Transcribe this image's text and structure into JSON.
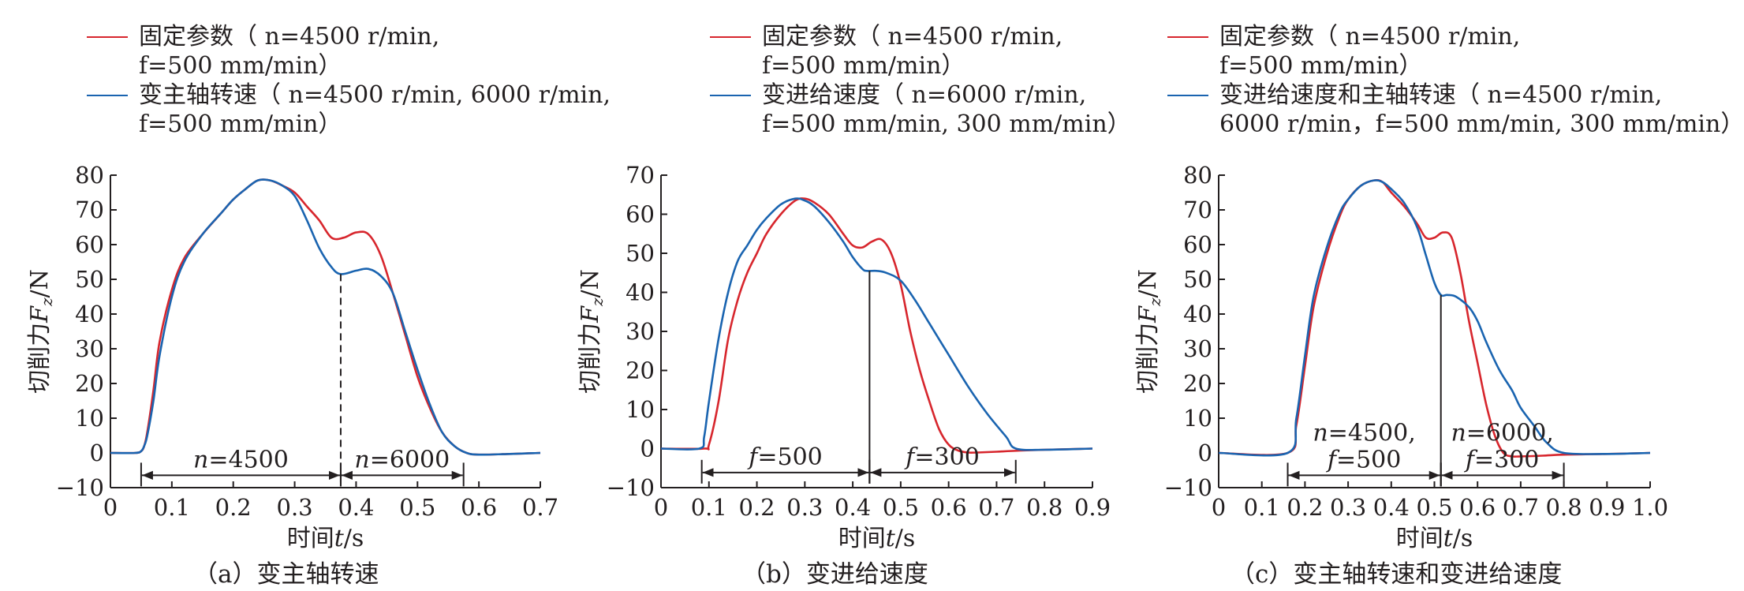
{
  "colors": {
    "fixed": "#d7262d",
    "variable": "#1a64b0",
    "axis": "#231f20"
  },
  "chart_data": [
    {
      "type": "line",
      "caption": "（a）变主轴转速",
      "xlabel": "时间t/s",
      "ylabel": "切削力F_z/N",
      "xlim": [
        0,
        0.7
      ],
      "ylim": [
        -10,
        80
      ],
      "xticks": [
        "0",
        "0.1",
        "0.2",
        "0.3",
        "0.4",
        "0.5",
        "0.6",
        "0.7"
      ],
      "yticks": [
        "−10",
        "0",
        "10",
        "20",
        "30",
        "40",
        "50",
        "60",
        "70",
        "80"
      ],
      "legend": [
        {
          "line1": "固定参数（ n=4500 r/min,",
          "line2": "f=500 mm/min）"
        },
        {
          "line1": "变主轴转速（ n=4500 r/min, 6000 r/min,",
          "line2": "f=500 mm/min）"
        }
      ],
      "series": [
        {
          "name": "固定参数",
          "color_key": "fixed",
          "x": [
            0,
            0.04,
            0.05,
            0.055,
            0.06,
            0.07,
            0.08,
            0.1,
            0.12,
            0.15,
            0.18,
            0.2,
            0.22,
            0.24,
            0.26,
            0.28,
            0.3,
            0.32,
            0.34,
            0.36,
            0.38,
            0.4,
            0.42,
            0.44,
            0.46,
            0.48,
            0.5,
            0.52,
            0.54,
            0.56,
            0.58,
            0.6,
            0.65,
            0.7
          ],
          "y": [
            0,
            0,
            0.5,
            2,
            6,
            18,
            32,
            47,
            56,
            63,
            69,
            73,
            76,
            78.5,
            78.5,
            77,
            75,
            71,
            67,
            62,
            62,
            63.5,
            63,
            57,
            46,
            34,
            22,
            13,
            6,
            2,
            0,
            -0.5,
            -0.3,
            0
          ]
        },
        {
          "name": "变主轴转速",
          "color_key": "variable",
          "x": [
            0,
            0.04,
            0.05,
            0.055,
            0.06,
            0.07,
            0.08,
            0.1,
            0.12,
            0.15,
            0.18,
            0.2,
            0.22,
            0.24,
            0.26,
            0.28,
            0.3,
            0.32,
            0.34,
            0.36,
            0.375,
            0.4,
            0.42,
            0.44,
            0.46,
            0.48,
            0.5,
            0.52,
            0.54,
            0.56,
            0.58,
            0.6,
            0.65,
            0.7
          ],
          "y": [
            0,
            0,
            0.5,
            2,
            5,
            15,
            28,
            45,
            55,
            63,
            69,
            73,
            76,
            78.5,
            78.5,
            77,
            74,
            67,
            59,
            53.5,
            51.5,
            52.5,
            53,
            51,
            46,
            35,
            24,
            14,
            6,
            2,
            0,
            -0.5,
            -0.3,
            0
          ]
        }
      ],
      "vertical_marker": {
        "x": 0.375,
        "style": "dashed"
      },
      "annotations": [
        {
          "text": "n=4500",
          "x_from": 0.05,
          "x_to": 0.375,
          "y": -3.5
        },
        {
          "text": "n=6000",
          "x_from": 0.375,
          "x_to": 0.575,
          "y": -3.5
        }
      ]
    },
    {
      "type": "line",
      "caption": "（b）变进给速度",
      "xlabel": "时间t/s",
      "ylabel": "切削力F_z/N",
      "xlim": [
        0,
        0.9
      ],
      "ylim": [
        -10,
        70
      ],
      "xticks": [
        "0",
        "0.1",
        "0.2",
        "0.3",
        "0.4",
        "0.5",
        "0.6",
        "0.7",
        "0.8",
        "0.9"
      ],
      "yticks": [
        "−10",
        "0",
        "10",
        "20",
        "30",
        "40",
        "50",
        "60",
        "70"
      ],
      "legend": [
        {
          "line1": "固定参数（ n=4500 r/min,",
          "line2": "f=500 mm/min）"
        },
        {
          "line1": "变进给速度（ n=6000 r/min,",
          "line2": "f=500 mm/min, 300 mm/min）"
        }
      ],
      "series": [
        {
          "name": "固定参数",
          "color_key": "fixed",
          "x": [
            0,
            0.09,
            0.1,
            0.12,
            0.14,
            0.16,
            0.18,
            0.2,
            0.22,
            0.25,
            0.28,
            0.3,
            0.32,
            0.35,
            0.38,
            0.4,
            0.42,
            0.44,
            0.46,
            0.48,
            0.5,
            0.52,
            0.54,
            0.56,
            0.58,
            0.6,
            0.62,
            0.64,
            0.66,
            0.7,
            0.75,
            0.8,
            0.9
          ],
          "y": [
            0,
            0,
            1,
            12,
            28,
            38,
            45,
            50,
            55,
            60,
            63.5,
            64,
            63,
            60,
            55,
            52,
            51.5,
            53,
            53.5,
            50,
            42,
            30,
            20,
            12,
            5,
            1,
            -0.5,
            -1,
            -1,
            -0.8,
            -0.5,
            -0.3,
            0
          ]
        },
        {
          "name": "变进给速度",
          "color_key": "variable",
          "x": [
            0,
            0.08,
            0.09,
            0.1,
            0.12,
            0.14,
            0.16,
            0.18,
            0.2,
            0.22,
            0.25,
            0.28,
            0.3,
            0.32,
            0.35,
            0.38,
            0.4,
            0.42,
            0.43,
            0.45,
            0.47,
            0.5,
            0.53,
            0.56,
            0.6,
            0.64,
            0.68,
            0.72,
            0.74,
            0.8,
            0.9
          ],
          "y": [
            0,
            0,
            3,
            12,
            28,
            40,
            48,
            52,
            56,
            59,
            62.5,
            64,
            63.5,
            62,
            58,
            53,
            49,
            46,
            45.5,
            45.5,
            45,
            43,
            38,
            32,
            24,
            16,
            9,
            3,
            0,
            -0.3,
            0
          ]
        }
      ],
      "vertical_marker": {
        "x": 0.435,
        "style": "solid"
      },
      "annotations": [
        {
          "text": "f=500",
          "x_from": 0.085,
          "x_to": 0.435,
          "y": -3.5
        },
        {
          "text": "f=300",
          "x_from": 0.435,
          "x_to": 0.74,
          "y": -3.5
        }
      ]
    },
    {
      "type": "line",
      "caption": "（c）变主轴转速和变进给速度",
      "xlabel": "时间t/s",
      "ylabel": "切削力F_z/N",
      "xlim": [
        0,
        1.0
      ],
      "ylim": [
        -10,
        80
      ],
      "xticks": [
        "0",
        "0.1",
        "0.2",
        "0.3",
        "0.4",
        "0.5",
        "0.6",
        "0.7",
        "0.8",
        "0.9",
        "1.0"
      ],
      "yticks": [
        "−10",
        "0",
        "10",
        "20",
        "30",
        "40",
        "50",
        "60",
        "70",
        "80"
      ],
      "legend": [
        {
          "line1": "固定参数（ n=4500 r/min,",
          "line2": "f=500 mm/min）"
        },
        {
          "line1": "变进给速度和主轴转速（ n=4500 r/min,",
          "line2": "6000 r/min，f=500 mm/min, 300 mm/min）"
        }
      ],
      "series": [
        {
          "name": "固定参数",
          "color_key": "fixed",
          "x": [
            0,
            0.16,
            0.18,
            0.2,
            0.22,
            0.25,
            0.28,
            0.3,
            0.33,
            0.36,
            0.38,
            0.4,
            0.43,
            0.46,
            0.48,
            0.5,
            0.52,
            0.54,
            0.56,
            0.58,
            0.6,
            0.62,
            0.64,
            0.66,
            0.68,
            0.7,
            0.75,
            0.8,
            0.9,
            1.0
          ],
          "y": [
            0,
            0,
            8,
            25,
            42,
            57,
            68,
            73,
            77,
            78.5,
            78,
            75,
            71,
            66,
            62,
            62,
            63.5,
            62,
            52,
            38,
            26,
            14,
            5,
            0,
            -1,
            -1,
            -0.8,
            -0.5,
            -0.3,
            0
          ]
        },
        {
          "name": "变进给速度和主轴转速",
          "color_key": "variable",
          "x": [
            0,
            0.16,
            0.18,
            0.2,
            0.22,
            0.25,
            0.28,
            0.3,
            0.33,
            0.36,
            0.38,
            0.4,
            0.43,
            0.46,
            0.48,
            0.5,
            0.515,
            0.53,
            0.55,
            0.58,
            0.6,
            0.62,
            0.65,
            0.68,
            0.7,
            0.73,
            0.76,
            0.8,
            0.9,
            1.0
          ],
          "y": [
            0,
            0,
            10,
            28,
            45,
            59,
            69,
            73,
            77,
            78.5,
            78,
            76,
            72,
            65,
            57,
            49,
            45.5,
            45.5,
            45,
            42,
            38,
            32,
            24,
            18,
            13,
            8,
            3,
            0,
            -0.3,
            0
          ]
        }
      ],
      "vertical_marker": {
        "x": 0.515,
        "style": "solid"
      },
      "annotations": [
        {
          "text": "n=4500,",
          "text2": "f=500",
          "x_from": 0.16,
          "x_to": 0.515,
          "y": -3.5
        },
        {
          "text": "n=6000,",
          "text2": "f=300",
          "x_from": 0.515,
          "x_to": 0.8,
          "y": -3.5
        }
      ]
    }
  ]
}
